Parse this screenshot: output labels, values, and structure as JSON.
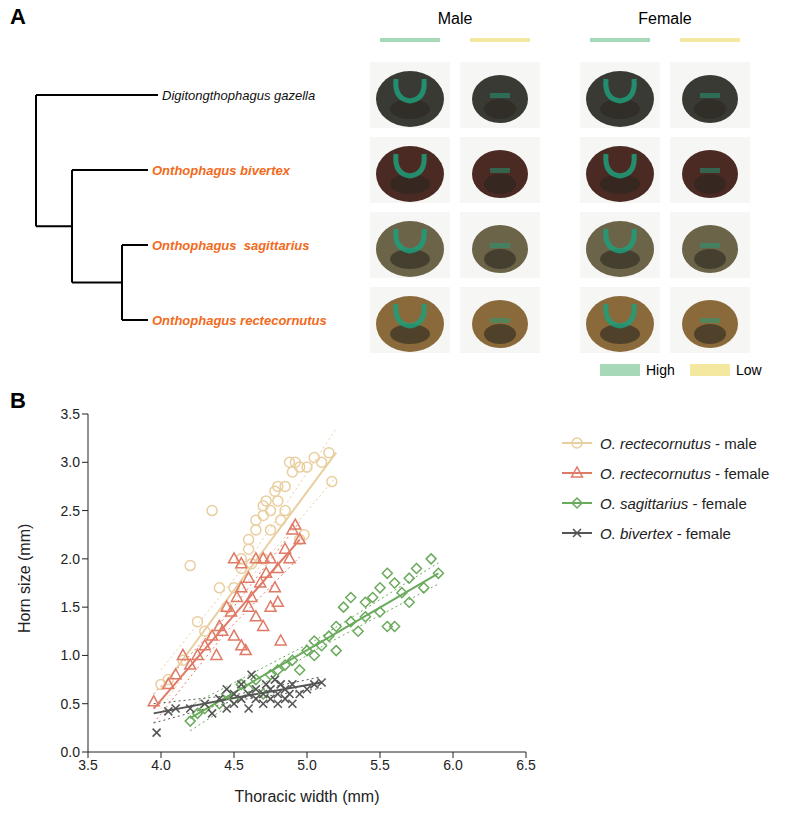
{
  "panel_a": {
    "label": "A",
    "sexes": [
      "Male",
      "Female"
    ],
    "levels": [
      {
        "name": "High",
        "color": "#a6d9b8"
      },
      {
        "name": "Low",
        "color": "#f4e7a0"
      }
    ],
    "species": [
      {
        "name": "Digitongthophagus gazella",
        "color": "#111111"
      },
      {
        "name": "Onthophagus bivertex",
        "color": "#f26a1b"
      },
      {
        "name": "Onthophagus  sagittarius",
        "color": "#f26a1b"
      },
      {
        "name": "Onthophagus rectecornutus",
        "color": "#f26a1b"
      }
    ]
  },
  "panel_b": {
    "label": "B"
  },
  "chart_data": {
    "type": "scatter",
    "x_label": "Thoracic width (mm)",
    "y_label": "Horn size (mm)",
    "xlim": [
      3.5,
      6.5
    ],
    "xticks": [
      3.5,
      {
        "value": 4,
        "label": "4.0"
      },
      4.5,
      {
        "value": 5,
        "label": "5.0"
      },
      5.5,
      {
        "value": 6,
        "label": "6.0"
      },
      6.5
    ],
    "ylim": [
      0,
      3.5
    ],
    "yticks": [
      {
        "value": 0,
        "label": "0.0"
      },
      0.5,
      {
        "value": 1,
        "label": "1.0"
      },
      1.5,
      {
        "value": 2,
        "label": "2.0"
      },
      2.5,
      {
        "value": 3,
        "label": "3.0"
      },
      3.5
    ],
    "grid": false,
    "legend": "right",
    "series": [
      {
        "name": "O. rectecornutus - male",
        "color": "#e9cf9f",
        "marker": "circle",
        "x": [
          4.0,
          4.05,
          4.15,
          4.2,
          4.25,
          4.3,
          4.35,
          4.4,
          4.45,
          4.5,
          4.55,
          4.55,
          4.6,
          4.6,
          4.62,
          4.65,
          4.65,
          4.7,
          4.7,
          4.72,
          4.75,
          4.75,
          4.78,
          4.8,
          4.8,
          4.82,
          4.85,
          4.88,
          4.9,
          4.92,
          4.95,
          4.95,
          4.98,
          5.0,
          5.05,
          5.1,
          5.15,
          5.17,
          4.85,
          4.7
        ],
        "values": [
          0.7,
          0.75,
          0.95,
          1.93,
          1.35,
          1.25,
          2.5,
          1.7,
          1.5,
          1.7,
          1.9,
          2.0,
          2.1,
          2.2,
          1.95,
          2.3,
          2.4,
          2.45,
          2.55,
          2.6,
          2.3,
          2.5,
          2.7,
          2.75,
          2.6,
          2.4,
          2.5,
          3.0,
          2.9,
          3.0,
          2.95,
          2.2,
          2.25,
          2.95,
          3.05,
          3.0,
          3.1,
          2.8,
          2.75,
          2.0
        ],
        "fit": {
          "x": [
            4.0,
            4.6,
            5.2
          ],
          "y": [
            0.65,
            1.88,
            3.1
          ],
          "lower": [
            0.45,
            1.78,
            2.85
          ],
          "upper": [
            0.85,
            1.98,
            3.35
          ]
        }
      },
      {
        "name": "O. rectecornutus - female",
        "color": "#e07a66",
        "marker": "triangle",
        "x": [
          3.95,
          4.05,
          4.1,
          4.15,
          4.2,
          4.25,
          4.3,
          4.35,
          4.38,
          4.4,
          4.42,
          4.45,
          4.48,
          4.5,
          4.52,
          4.55,
          4.55,
          4.58,
          4.6,
          4.6,
          4.62,
          4.65,
          4.65,
          4.68,
          4.7,
          4.7,
          4.72,
          4.75,
          4.75,
          4.78,
          4.8,
          4.8,
          4.82,
          4.85,
          4.88,
          4.9,
          4.92,
          4.95,
          4.5,
          4.55
        ],
        "values": [
          0.52,
          0.7,
          0.8,
          1.0,
          0.9,
          1.0,
          1.1,
          1.2,
          1.0,
          1.3,
          1.25,
          1.5,
          1.45,
          1.2,
          1.6,
          1.1,
          1.7,
          1.05,
          1.5,
          1.8,
          1.6,
          2.0,
          1.4,
          1.75,
          1.3,
          2.0,
          1.85,
          1.5,
          2.0,
          1.7,
          1.9,
          1.55,
          1.15,
          2.1,
          2.0,
          2.3,
          2.35,
          2.2,
          2.0,
          1.95
        ],
        "fit": {
          "x": [
            3.95,
            4.45,
            4.95
          ],
          "y": [
            0.45,
            1.33,
            2.2
          ],
          "lower": [
            0.3,
            1.25,
            2.02
          ],
          "upper": [
            0.6,
            1.41,
            2.38
          ]
        }
      },
      {
        "name": "O. sagittarius - female",
        "color": "#6aaa5c",
        "marker": "diamond",
        "x": [
          4.2,
          4.25,
          4.3,
          4.4,
          4.45,
          4.5,
          4.55,
          4.6,
          4.65,
          4.7,
          4.75,
          4.8,
          4.85,
          4.9,
          4.95,
          5.0,
          5.05,
          5.05,
          5.1,
          5.15,
          5.2,
          5.2,
          5.25,
          5.3,
          5.35,
          5.4,
          5.4,
          5.45,
          5.5,
          5.5,
          5.55,
          5.6,
          5.6,
          5.65,
          5.7,
          5.7,
          5.75,
          5.8,
          5.85,
          5.9,
          5.55,
          5.3
        ],
        "values": [
          0.32,
          0.4,
          0.45,
          0.5,
          0.6,
          0.55,
          0.7,
          0.65,
          0.75,
          0.6,
          0.8,
          0.85,
          0.9,
          0.95,
          0.85,
          1.05,
          1.0,
          1.15,
          1.1,
          1.2,
          1.3,
          1.05,
          1.5,
          1.35,
          1.25,
          1.55,
          1.4,
          1.6,
          1.7,
          1.45,
          1.3,
          1.3,
          1.75,
          1.65,
          1.55,
          1.8,
          1.9,
          1.7,
          2.0,
          1.85,
          1.85,
          1.6
        ],
        "fit": {
          "x": [
            4.2,
            5.05,
            5.9
          ],
          "y": [
            0.35,
            1.1,
            1.85
          ],
          "lower": [
            0.22,
            1.05,
            1.74
          ],
          "upper": [
            0.48,
            1.15,
            1.96
          ]
        }
      },
      {
        "name": "O. bivertex - female",
        "color": "#555555",
        "marker": "cross",
        "x": [
          3.97,
          4.05,
          4.1,
          4.2,
          4.3,
          4.35,
          4.4,
          4.45,
          4.5,
          4.5,
          4.55,
          4.55,
          4.6,
          4.6,
          4.65,
          4.65,
          4.7,
          4.7,
          4.72,
          4.75,
          4.75,
          4.78,
          4.8,
          4.8,
          4.82,
          4.85,
          4.85,
          4.88,
          4.9,
          4.9,
          4.95,
          5.0,
          5.05,
          5.1,
          4.62,
          4.45
        ],
        "values": [
          0.2,
          0.42,
          0.45,
          0.45,
          0.5,
          0.4,
          0.55,
          0.45,
          0.6,
          0.5,
          0.55,
          0.7,
          0.45,
          0.6,
          0.55,
          0.65,
          0.5,
          0.6,
          0.7,
          0.55,
          0.65,
          0.75,
          0.5,
          0.6,
          0.7,
          0.55,
          0.65,
          0.6,
          0.5,
          0.7,
          0.6,
          0.65,
          0.7,
          0.72,
          0.8,
          0.65
        ],
        "fit": {
          "x": [
            3.95,
            4.5,
            5.1
          ],
          "y": [
            0.4,
            0.56,
            0.72
          ],
          "lower": [
            0.3,
            0.53,
            0.66
          ],
          "upper": [
            0.5,
            0.59,
            0.78
          ]
        }
      }
    ]
  }
}
